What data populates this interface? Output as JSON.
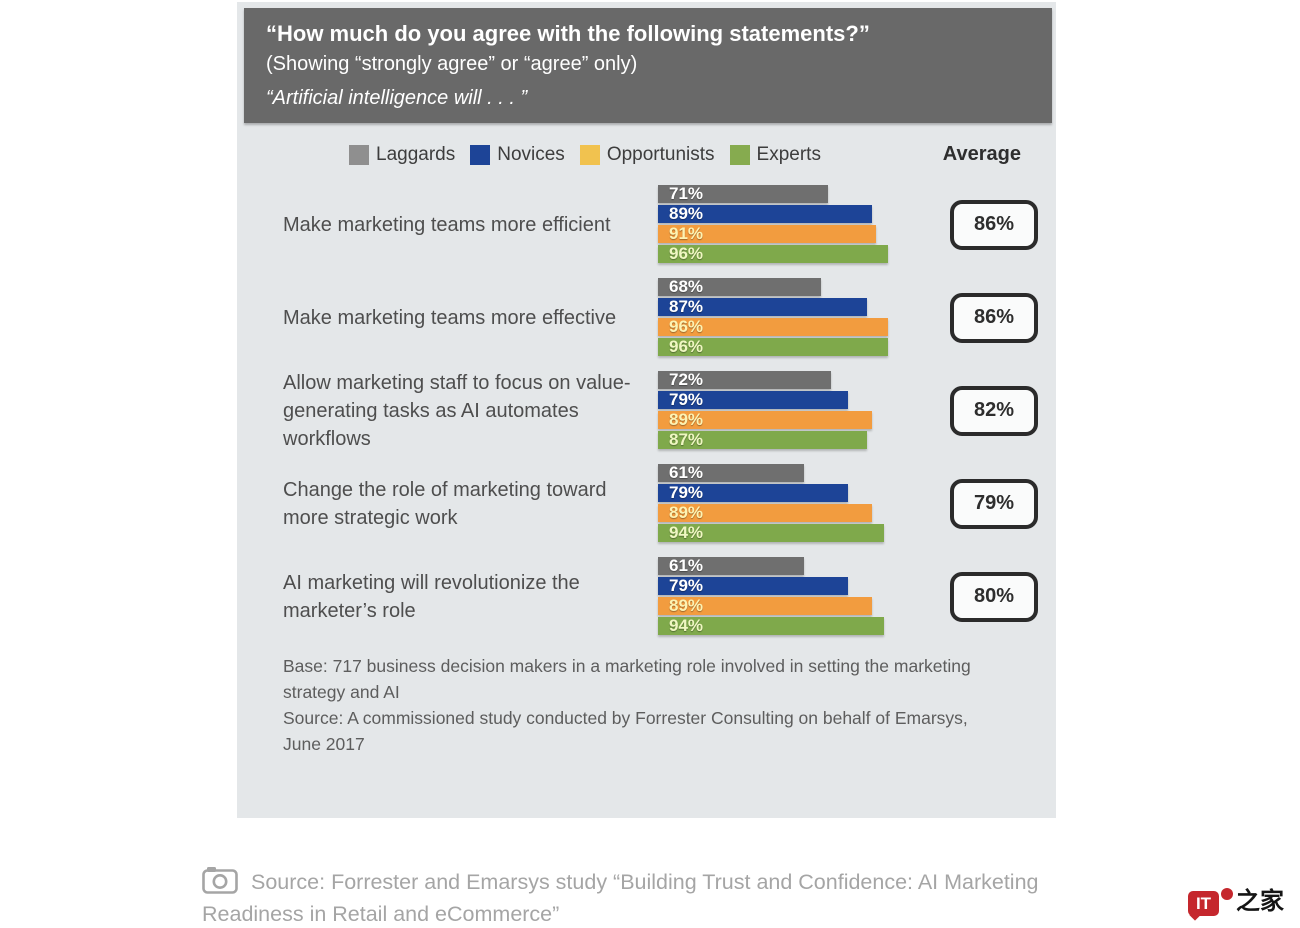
{
  "header": {
    "title": "“How much do you agree with the following statements?”",
    "subtitle": "(Showing “strongly agree” or “agree” only)",
    "lead_in": "“Artificial intelligence will . . . ”"
  },
  "legend": {
    "items": [
      {
        "label": "Laggards",
        "color": "#8f8f8f"
      },
      {
        "label": "Novices",
        "color": "#1d4497"
      },
      {
        "label": "Opportunists",
        "color": "#f1c24f"
      },
      {
        "label": "Experts",
        "color": "#86ab4f"
      }
    ],
    "average_label": "Average"
  },
  "chart_data": {
    "type": "bar",
    "orientation": "horizontal",
    "unit": "%",
    "xlim": [
      0,
      100
    ],
    "series_names": [
      "Laggards",
      "Novices",
      "Opportunists",
      "Experts"
    ],
    "series_colors": [
      "#6f6f6f",
      "#1d4497",
      "#f29c3f",
      "#7fa94b"
    ],
    "series_label_colors": [
      "#ffffff",
      "#ffffff",
      "#fdf3b3",
      "#eff7c2"
    ],
    "groups": [
      {
        "label": "Make marketing teams more efficient",
        "values": [
          71,
          89,
          91,
          96
        ],
        "average": 86
      },
      {
        "label": "Make marketing teams more effective",
        "values": [
          68,
          87,
          96,
          96
        ],
        "average": 86
      },
      {
        "label": "Allow marketing staff to focus on value-generating tasks as AI automates workflows",
        "values": [
          72,
          79,
          89,
          87
        ],
        "average": 82
      },
      {
        "label": "Change the role of marketing toward more strategic work",
        "values": [
          61,
          79,
          89,
          94
        ],
        "average": 79
      },
      {
        "label": "AI marketing will revolutionize the marketer’s role",
        "values": [
          61,
          79,
          89,
          94
        ],
        "average": 80
      }
    ],
    "footnotes": [
      "Base: 717 business decision makers in a marketing role involved in setting the marketing strategy and AI",
      "Source: A commissioned study conducted by Forrester Consulting on behalf of Emarsys, June 2017"
    ]
  },
  "caption": {
    "text": "Source: Forrester and Emarsys study “Building Trust and Confidence: AI Marketing Readiness in Retail and eCommerce”"
  },
  "watermark": {
    "brand": "IT",
    "suffix": "之家"
  }
}
